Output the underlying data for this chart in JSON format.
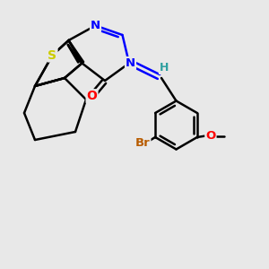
{
  "background_color": "#e8e8e8",
  "atom_colors": {
    "S": "#cccc00",
    "N": "#0000ff",
    "O": "#ff0000",
    "Br": "#b85c00",
    "C": "#000000",
    "H": "#2fa0a0"
  },
  "bond_color": "#000000",
  "bond_width": 1.8,
  "figsize": [
    3.0,
    3.0
  ],
  "dpi": 100,
  "xlim": [
    0,
    10
  ],
  "ylim": [
    0,
    10
  ]
}
